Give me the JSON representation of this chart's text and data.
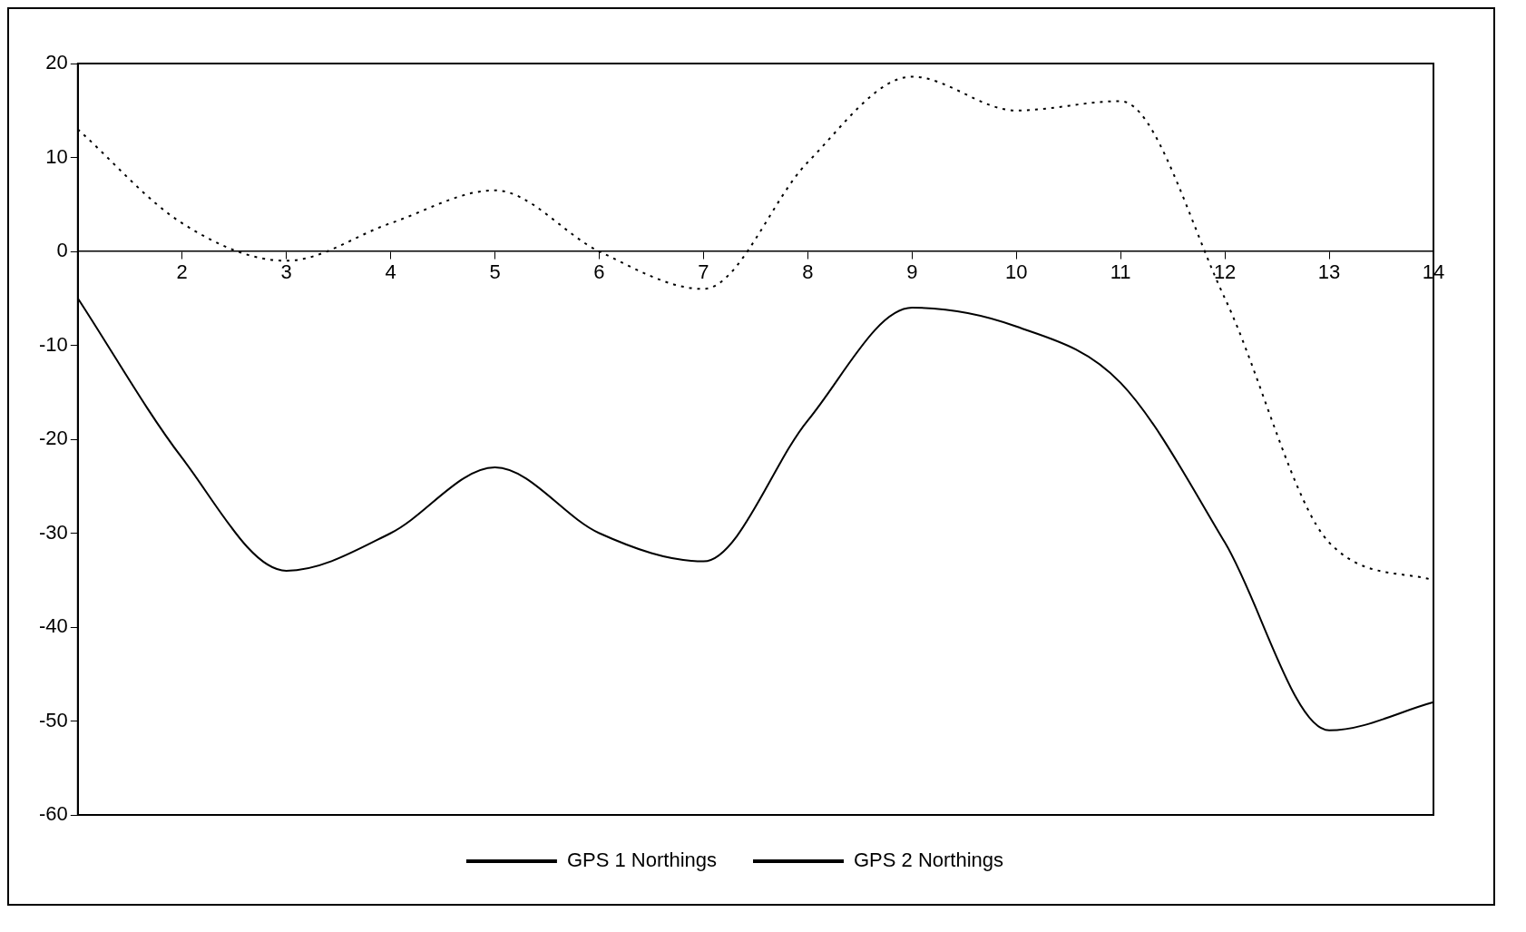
{
  "chart_data": {
    "type": "line",
    "categories": [
      null,
      "2",
      "3",
      "4",
      "5",
      "6",
      "7",
      "8",
      "9",
      "10",
      "11",
      "12",
      "13",
      "14"
    ],
    "series": [
      {
        "name": "GPS 1 Northings",
        "color": "#000000",
        "line_style": "solid",
        "values": [
          -5,
          -22,
          -34,
          -30,
          -23,
          -30,
          -33,
          -18,
          -6,
          -8,
          -14,
          -31,
          -51,
          -48
        ]
      },
      {
        "name": "GPS 2 Northings",
        "color": "#000000",
        "line_style": "dotted",
        "values": [
          13,
          3,
          -1,
          3,
          6.5,
          0,
          -4,
          9.5,
          18.6,
          15,
          16,
          -5,
          -31,
          -35
        ]
      }
    ],
    "ylim": [
      -60,
      20
    ],
    "yticks": [
      -60,
      -50,
      -40,
      -30,
      -20,
      -10,
      0,
      10,
      20
    ],
    "grid": false,
    "legend": "bottom",
    "marker": "none"
  }
}
